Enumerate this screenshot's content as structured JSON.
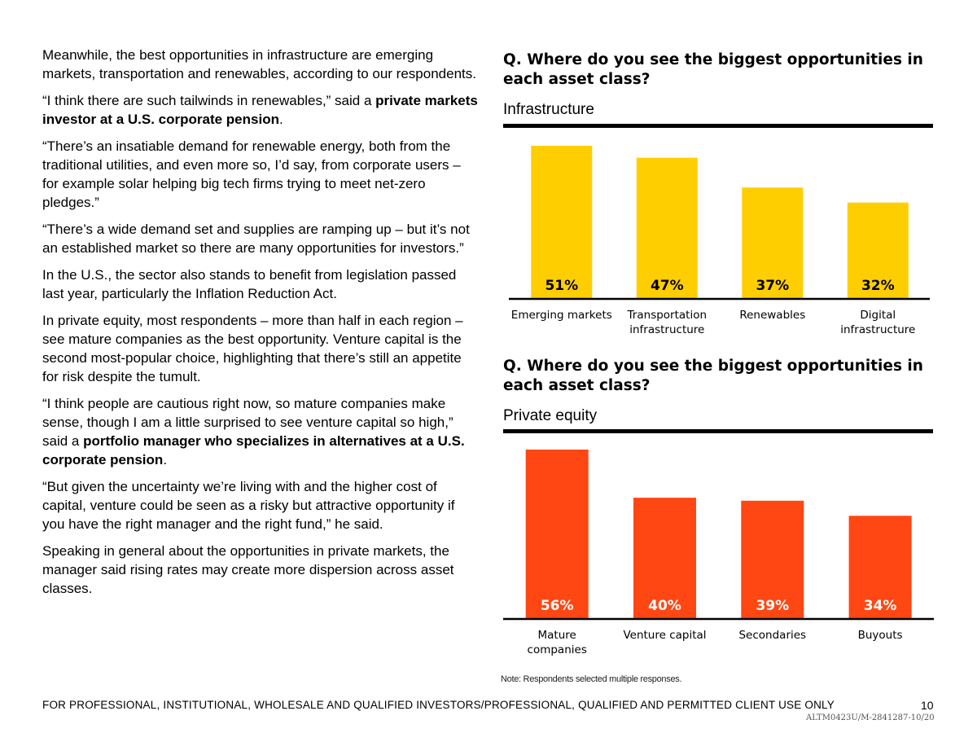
{
  "body_paragraphs": [
    {
      "parts": [
        {
          "text": "Meanwhile, the best opportunities in infrastructure are emerging markets, transportation and renewables, according to our respondents.",
          "bold": false
        }
      ]
    },
    {
      "parts": [
        {
          "text": "“I think there are such tailwinds in renewables,” said a ",
          "bold": false
        },
        {
          "text": "private markets investor at a U.S. corporate pension",
          "bold": true
        },
        {
          "text": ".",
          "bold": false
        }
      ]
    },
    {
      "parts": [
        {
          "text": "“There’s an insatiable demand for renewable energy, both from the traditional utilities, and even more so, I’d say, from corporate users – for example solar helping big tech firms trying to meet net-zero pledges.”",
          "bold": false
        }
      ]
    },
    {
      "parts": [
        {
          "text": "“There’s a wide demand set and supplies are ramping up – but it’s not an established market so there are many opportunities for investors.”",
          "bold": false
        }
      ]
    },
    {
      "parts": [
        {
          "text": "In the U.S., the sector also stands to benefit from legislation passed last year, particularly the Inflation Reduction Act.",
          "bold": false
        }
      ]
    },
    {
      "parts": [
        {
          "text": "In private equity, most respondents – more than half in each region – see mature companies as the best opportunity. Venture capital is the second most-popular choice, highlighting that there’s still an appetite for risk despite the tumult.",
          "bold": false
        }
      ]
    },
    {
      "parts": [
        {
          "text": "“I think people are cautious right now, so mature companies make sense, though I am a little surprised to see venture capital so high,” said a ",
          "bold": false
        },
        {
          "text": "portfolio manager who specializes in alternatives at a U.S. corporate pension",
          "bold": true
        },
        {
          "text": ".",
          "bold": false
        }
      ]
    },
    {
      "parts": [
        {
          "text": "“But given the uncertainty we’re living with and the higher cost of capital, venture could be seen as a risky but attractive opportunity if you have the right manager and the right fund,” he said.",
          "bold": false
        }
      ]
    },
    {
      "parts": [
        {
          "text": "Speaking in general about the opportunities in private markets, the manager said rising rates may create more dispersion across asset classes.",
          "bold": false
        }
      ]
    }
  ],
  "chart_data": [
    {
      "type": "bar",
      "title": "Q. Where do you see the biggest opportunities in each asset class?",
      "subtitle": "Infrastructure",
      "categories": [
        [
          "Emerging markets"
        ],
        [
          "Transportation",
          "infrastructure"
        ],
        [
          "Renewables"
        ],
        [
          "Digital",
          "infrastructure"
        ]
      ],
      "values": [
        51,
        47,
        37,
        32
      ],
      "value_labels": [
        "51%",
        "47%",
        "37%",
        "32%"
      ],
      "unit": "%",
      "color": "#FFCE00",
      "ylim": [
        0,
        51
      ]
    },
    {
      "type": "bar",
      "title": "Q. Where do you see the biggest opportunities in each asset class?",
      "subtitle": "Private equity",
      "categories": [
        [
          "Mature",
          "companies"
        ],
        [
          "Venture capital"
        ],
        [
          "Secondaries"
        ],
        [
          "Buyouts"
        ]
      ],
      "values": [
        56,
        40,
        39,
        34
      ],
      "value_labels": [
        "56%",
        "40%",
        "39%",
        "34%"
      ],
      "unit": "%",
      "color": "#FF4713",
      "ylim": [
        0,
        56
      ]
    }
  ],
  "note": "Note: Respondents selected multiple responses.",
  "footer": "FOR PROFESSIONAL, INSTITUTIONAL, WHOLESALE AND QUALIFIED INVESTORS/PROFESSIONAL, QUALIFIED AND PERMITTED CLIENT USE ONLY",
  "page_number": "10",
  "document_code": "ALTM0423U/M-2841287-10/20"
}
